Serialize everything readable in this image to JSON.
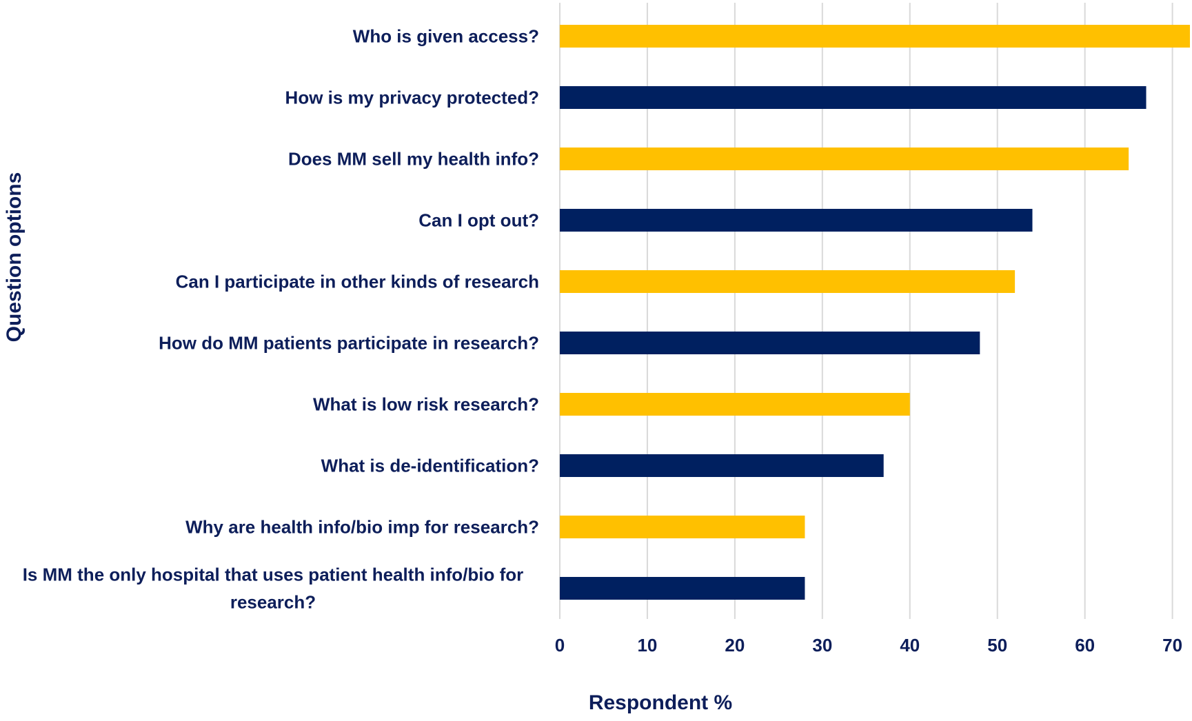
{
  "chart_data": {
    "type": "bar",
    "orientation": "horizontal",
    "categories": [
      "Who is given access?",
      "How is my privacy protected?",
      "Does MM sell my health info?",
      "Can I opt out?",
      "Can I participate in other kinds of research",
      "How do MM patients participate in research?",
      "What is low risk research?",
      "What is de-identification?",
      "Why are health info/bio imp for research?",
      "Is MM the only hospital that uses patient health info/bio for research?"
    ],
    "category_lines": [
      [
        "Who is given access?"
      ],
      [
        "How is my privacy protected?"
      ],
      [
        "Does MM sell my health info?"
      ],
      [
        "Can I opt out?"
      ],
      [
        "Can I participate in other kinds of research"
      ],
      [
        "How do MM patients participate in research?"
      ],
      [
        "What is low risk research?"
      ],
      [
        "What is de-identification?"
      ],
      [
        "Why are health info/bio imp for research?"
      ],
      [
        "Is MM the only hospital that uses patient health info/bio for",
        "research?"
      ]
    ],
    "values": [
      72,
      67,
      65,
      54,
      52,
      48,
      40,
      37,
      28,
      28
    ],
    "bar_colors": [
      "#FFC000",
      "#002060",
      "#FFC000",
      "#002060",
      "#FFC000",
      "#002060",
      "#FFC000",
      "#002060",
      "#FFC000",
      "#002060"
    ],
    "xlabel": "Respondent %",
    "ylabel": "Question options",
    "xlim": [
      0,
      72
    ],
    "xticks": [
      0,
      10,
      20,
      30,
      40,
      50,
      60,
      70
    ],
    "grid": "vertical",
    "legend": "none"
  },
  "colors": {
    "text": "#0D1E5A",
    "gold": "#FFC000",
    "navy": "#002060",
    "grid": "#D9D9D9"
  }
}
